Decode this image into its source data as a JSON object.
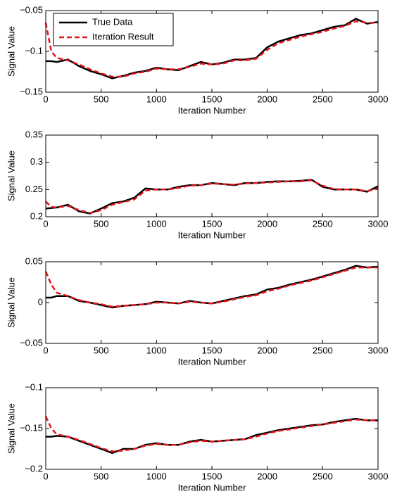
{
  "chart_data": [
    {
      "type": "line",
      "ylabel": "Signal Value",
      "xlabel": "Iteration Number",
      "legend": "upper left",
      "x": [
        0,
        50,
        100,
        200,
        300,
        400,
        500,
        600,
        700,
        800,
        900,
        1000,
        1100,
        1200,
        1300,
        1400,
        1500,
        1600,
        1700,
        1800,
        1900,
        2000,
        2100,
        2200,
        2300,
        2400,
        2500,
        2600,
        2700,
        2800,
        2900,
        3000
      ],
      "xlim": [
        0,
        3000
      ],
      "xticks": [
        0,
        500,
        1000,
        1500,
        2000,
        2500,
        3000
      ],
      "ylim": [
        -0.15,
        -0.05
      ],
      "yticks": [
        {
          "value": -0.15,
          "label": "−0.15"
        },
        {
          "value": -0.1,
          "label": "−0.1"
        },
        {
          "value": -0.05,
          "label": "−0.05"
        }
      ],
      "series": [
        {
          "name": "True Data",
          "color": "#000000",
          "values": [
            -0.112,
            -0.112,
            -0.113,
            -0.11,
            -0.118,
            -0.124,
            -0.128,
            -0.133,
            -0.13,
            -0.126,
            -0.124,
            -0.12,
            -0.122,
            -0.123,
            -0.118,
            -0.113,
            -0.116,
            -0.114,
            -0.11,
            -0.11,
            -0.108,
            -0.095,
            -0.088,
            -0.084,
            -0.08,
            -0.078,
            -0.074,
            -0.07,
            -0.068,
            -0.06,
            -0.066,
            -0.064
          ]
        },
        {
          "name": "Iteration Result",
          "color": "#e8151b",
          "values": [
            -0.065,
            -0.1,
            -0.108,
            -0.111,
            -0.116,
            -0.122,
            -0.127,
            -0.131,
            -0.131,
            -0.127,
            -0.125,
            -0.121,
            -0.122,
            -0.122,
            -0.119,
            -0.115,
            -0.116,
            -0.115,
            -0.111,
            -0.111,
            -0.109,
            -0.098,
            -0.09,
            -0.086,
            -0.082,
            -0.079,
            -0.076,
            -0.072,
            -0.069,
            -0.063,
            -0.065,
            -0.065
          ]
        }
      ]
    },
    {
      "type": "line",
      "ylabel": "Signal Value",
      "xlabel": "Iteration Number",
      "x": [
        0,
        50,
        100,
        200,
        300,
        400,
        500,
        600,
        700,
        800,
        900,
        1000,
        1100,
        1200,
        1300,
        1400,
        1500,
        1600,
        1700,
        1800,
        1900,
        2000,
        2100,
        2200,
        2300,
        2400,
        2500,
        2600,
        2700,
        2800,
        2900,
        3000
      ],
      "xlim": [
        0,
        3000
      ],
      "xticks": [
        0,
        500,
        1000,
        1500,
        2000,
        2500,
        3000
      ],
      "ylim": [
        0.2,
        0.35
      ],
      "yticks": [
        0.2,
        0.25,
        0.3,
        0.35
      ],
      "series": [
        {
          "color": "#000000",
          "values": [
            0.215,
            0.216,
            0.217,
            0.222,
            0.21,
            0.206,
            0.215,
            0.225,
            0.228,
            0.235,
            0.252,
            0.25,
            0.25,
            0.255,
            0.258,
            0.258,
            0.262,
            0.26,
            0.258,
            0.262,
            0.262,
            0.264,
            0.265,
            0.265,
            0.266,
            0.268,
            0.255,
            0.25,
            0.25,
            0.25,
            0.246,
            0.256
          ]
        },
        {
          "color": "#e8151b",
          "values": [
            0.228,
            0.218,
            0.217,
            0.22,
            0.212,
            0.207,
            0.212,
            0.222,
            0.227,
            0.232,
            0.248,
            0.25,
            0.25,
            0.253,
            0.257,
            0.258,
            0.261,
            0.26,
            0.259,
            0.261,
            0.262,
            0.263,
            0.264,
            0.265,
            0.265,
            0.267,
            0.257,
            0.251,
            0.25,
            0.25,
            0.247,
            0.252
          ]
        }
      ]
    },
    {
      "type": "line",
      "ylabel": "Signal Value",
      "xlabel": "Iteration Number",
      "x": [
        0,
        50,
        100,
        200,
        300,
        400,
        500,
        600,
        700,
        800,
        900,
        1000,
        1100,
        1200,
        1300,
        1400,
        1500,
        1600,
        1700,
        1800,
        1900,
        2000,
        2100,
        2200,
        2300,
        2400,
        2500,
        2600,
        2700,
        2800,
        2900,
        3000
      ],
      "xlim": [
        0,
        3000
      ],
      "xticks": [
        0,
        500,
        1000,
        1500,
        2000,
        2500,
        3000
      ],
      "ylim": [
        -0.05,
        0.05
      ],
      "yticks": [
        {
          "value": -0.05,
          "label": "−0.05"
        },
        0,
        0.05
      ],
      "series": [
        {
          "color": "#000000",
          "values": [
            0.006,
            0.006,
            0.008,
            0.008,
            0.002,
            0.0,
            -0.003,
            -0.006,
            -0.004,
            -0.003,
            -0.002,
            0.001,
            0.0,
            -0.001,
            0.002,
            0.0,
            -0.001,
            0.002,
            0.005,
            0.008,
            0.01,
            0.016,
            0.018,
            0.022,
            0.025,
            0.028,
            0.032,
            0.036,
            0.04,
            0.045,
            0.043,
            0.044
          ]
        },
        {
          "color": "#e8151b",
          "values": [
            0.038,
            0.022,
            0.012,
            0.008,
            0.003,
            0.0,
            -0.002,
            -0.005,
            -0.004,
            -0.003,
            -0.002,
            0.0,
            0.0,
            -0.001,
            0.001,
            0.0,
            -0.001,
            0.001,
            0.004,
            0.007,
            0.009,
            0.014,
            0.017,
            0.021,
            0.024,
            0.027,
            0.031,
            0.035,
            0.039,
            0.043,
            0.043,
            0.043
          ]
        }
      ]
    },
    {
      "type": "line",
      "ylabel": "Signal Value",
      "xlabel": "Iteration Number",
      "x": [
        0,
        50,
        100,
        200,
        300,
        400,
        500,
        600,
        700,
        800,
        900,
        1000,
        1100,
        1200,
        1300,
        1400,
        1500,
        1600,
        1700,
        1800,
        1900,
        2000,
        2100,
        2200,
        2300,
        2400,
        2500,
        2600,
        2700,
        2800,
        2900,
        3000
      ],
      "xlim": [
        0,
        3000
      ],
      "xticks": [
        0,
        500,
        1000,
        1500,
        2000,
        2500,
        3000
      ],
      "ylim": [
        -0.2,
        -0.1
      ],
      "yticks": [
        {
          "value": -0.2,
          "label": "−0.2"
        },
        {
          "value": -0.15,
          "label": "−0.15"
        },
        {
          "value": -0.1,
          "label": "−0.1"
        }
      ],
      "series": [
        {
          "color": "#000000",
          "values": [
            -0.16,
            -0.16,
            -0.159,
            -0.16,
            -0.165,
            -0.17,
            -0.175,
            -0.18,
            -0.175,
            -0.175,
            -0.17,
            -0.168,
            -0.17,
            -0.17,
            -0.166,
            -0.164,
            -0.166,
            -0.165,
            -0.164,
            -0.163,
            -0.158,
            -0.155,
            -0.152,
            -0.15,
            -0.148,
            -0.146,
            -0.145,
            -0.142,
            -0.14,
            -0.138,
            -0.14,
            -0.14
          ]
        },
        {
          "color": "#e8151b",
          "values": [
            -0.135,
            -0.15,
            -0.157,
            -0.16,
            -0.164,
            -0.169,
            -0.174,
            -0.178,
            -0.177,
            -0.175,
            -0.171,
            -0.169,
            -0.17,
            -0.17,
            -0.167,
            -0.165,
            -0.166,
            -0.165,
            -0.164,
            -0.163,
            -0.16,
            -0.156,
            -0.153,
            -0.151,
            -0.149,
            -0.147,
            -0.145,
            -0.143,
            -0.141,
            -0.139,
            -0.14,
            -0.14
          ]
        }
      ]
    }
  ]
}
